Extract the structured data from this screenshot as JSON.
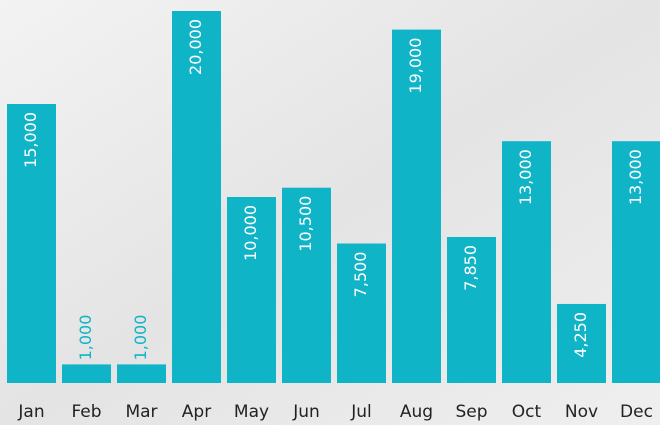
{
  "chart_data": {
    "type": "bar",
    "categories": [
      "Jan",
      "Feb",
      "Mar",
      "Apr",
      "May",
      "Jun",
      "Jul",
      "Aug",
      "Sep",
      "Oct",
      "Nov",
      "Dec"
    ],
    "values": [
      15000,
      1000,
      1000,
      20000,
      10000,
      10500,
      7500,
      19000,
      7850,
      13000,
      4250,
      13000
    ],
    "value_labels": [
      "15,000",
      "1,000",
      "1,000",
      "20,000",
      "10,000",
      "10,500",
      "7,500",
      "19,000",
      "7,850",
      "13,000",
      "4,250",
      "13,000"
    ],
    "color": "#10b4c7"
  }
}
